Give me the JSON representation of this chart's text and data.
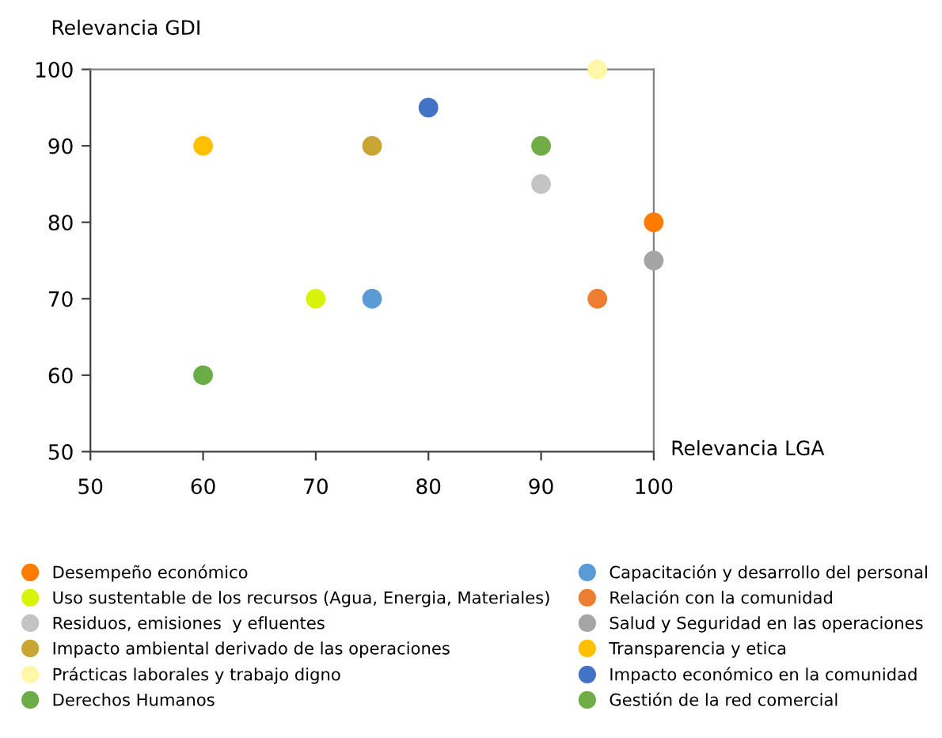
{
  "chart_data": {
    "type": "scatter",
    "xlabel": "Relevancia LGA",
    "ylabel": "Relevancia GDI",
    "xlim": [
      50,
      100
    ],
    "ylim": [
      50,
      100
    ],
    "xticks": [
      50,
      60,
      70,
      80,
      90,
      100
    ],
    "yticks": [
      50,
      60,
      70,
      80,
      90,
      100
    ],
    "grid": false,
    "legend": "bottom",
    "marker": "circle",
    "series": [
      {
        "name": "Desempeño económico",
        "color": "#ff7c00",
        "x": [
          100
        ],
        "values": [
          80
        ]
      },
      {
        "name": "Uso sustentable de los recursos (Agua, Energia, Materiales)",
        "color": "#d9f20a",
        "x": [
          70
        ],
        "values": [
          70
        ]
      },
      {
        "name": "Residuos, emisiones  y efluentes",
        "color": "#c4c4c4",
        "x": [
          90
        ],
        "values": [
          85
        ]
      },
      {
        "name": "Impacto ambiental derivado de las operaciones",
        "color": "#c9a634",
        "x": [
          75
        ],
        "values": [
          90
        ]
      },
      {
        "name": "Prácticas laborales y trabajo digno",
        "color": "#fff6a8",
        "x": [
          95
        ],
        "values": [
          100
        ]
      },
      {
        "name": "Derechos Humanos",
        "color": "#6aac46",
        "x": [
          60
        ],
        "values": [
          60
        ]
      },
      {
        "name": "Capacitación y desarrollo del personal",
        "color": "#5b9bd5",
        "x": [
          75
        ],
        "values": [
          70
        ]
      },
      {
        "name": "Relación con la comunidad",
        "color": "#ed7d31",
        "x": [
          95
        ],
        "values": [
          70
        ]
      },
      {
        "name": "Salud y Seguridad en las operaciones",
        "color": "#a5a5a5",
        "x": [
          100
        ],
        "values": [
          75
        ]
      },
      {
        "name": "Transparencia y etica",
        "color": "#ffc000",
        "x": [
          60
        ],
        "values": [
          90
        ]
      },
      {
        "name": "Impacto económico en la comunidad",
        "color": "#4472c4",
        "x": [
          80
        ],
        "values": [
          95
        ]
      },
      {
        "name": "Gestión de la red comercial",
        "color": "#70ad47",
        "x": [
          90
        ],
        "values": [
          90
        ]
      }
    ]
  }
}
